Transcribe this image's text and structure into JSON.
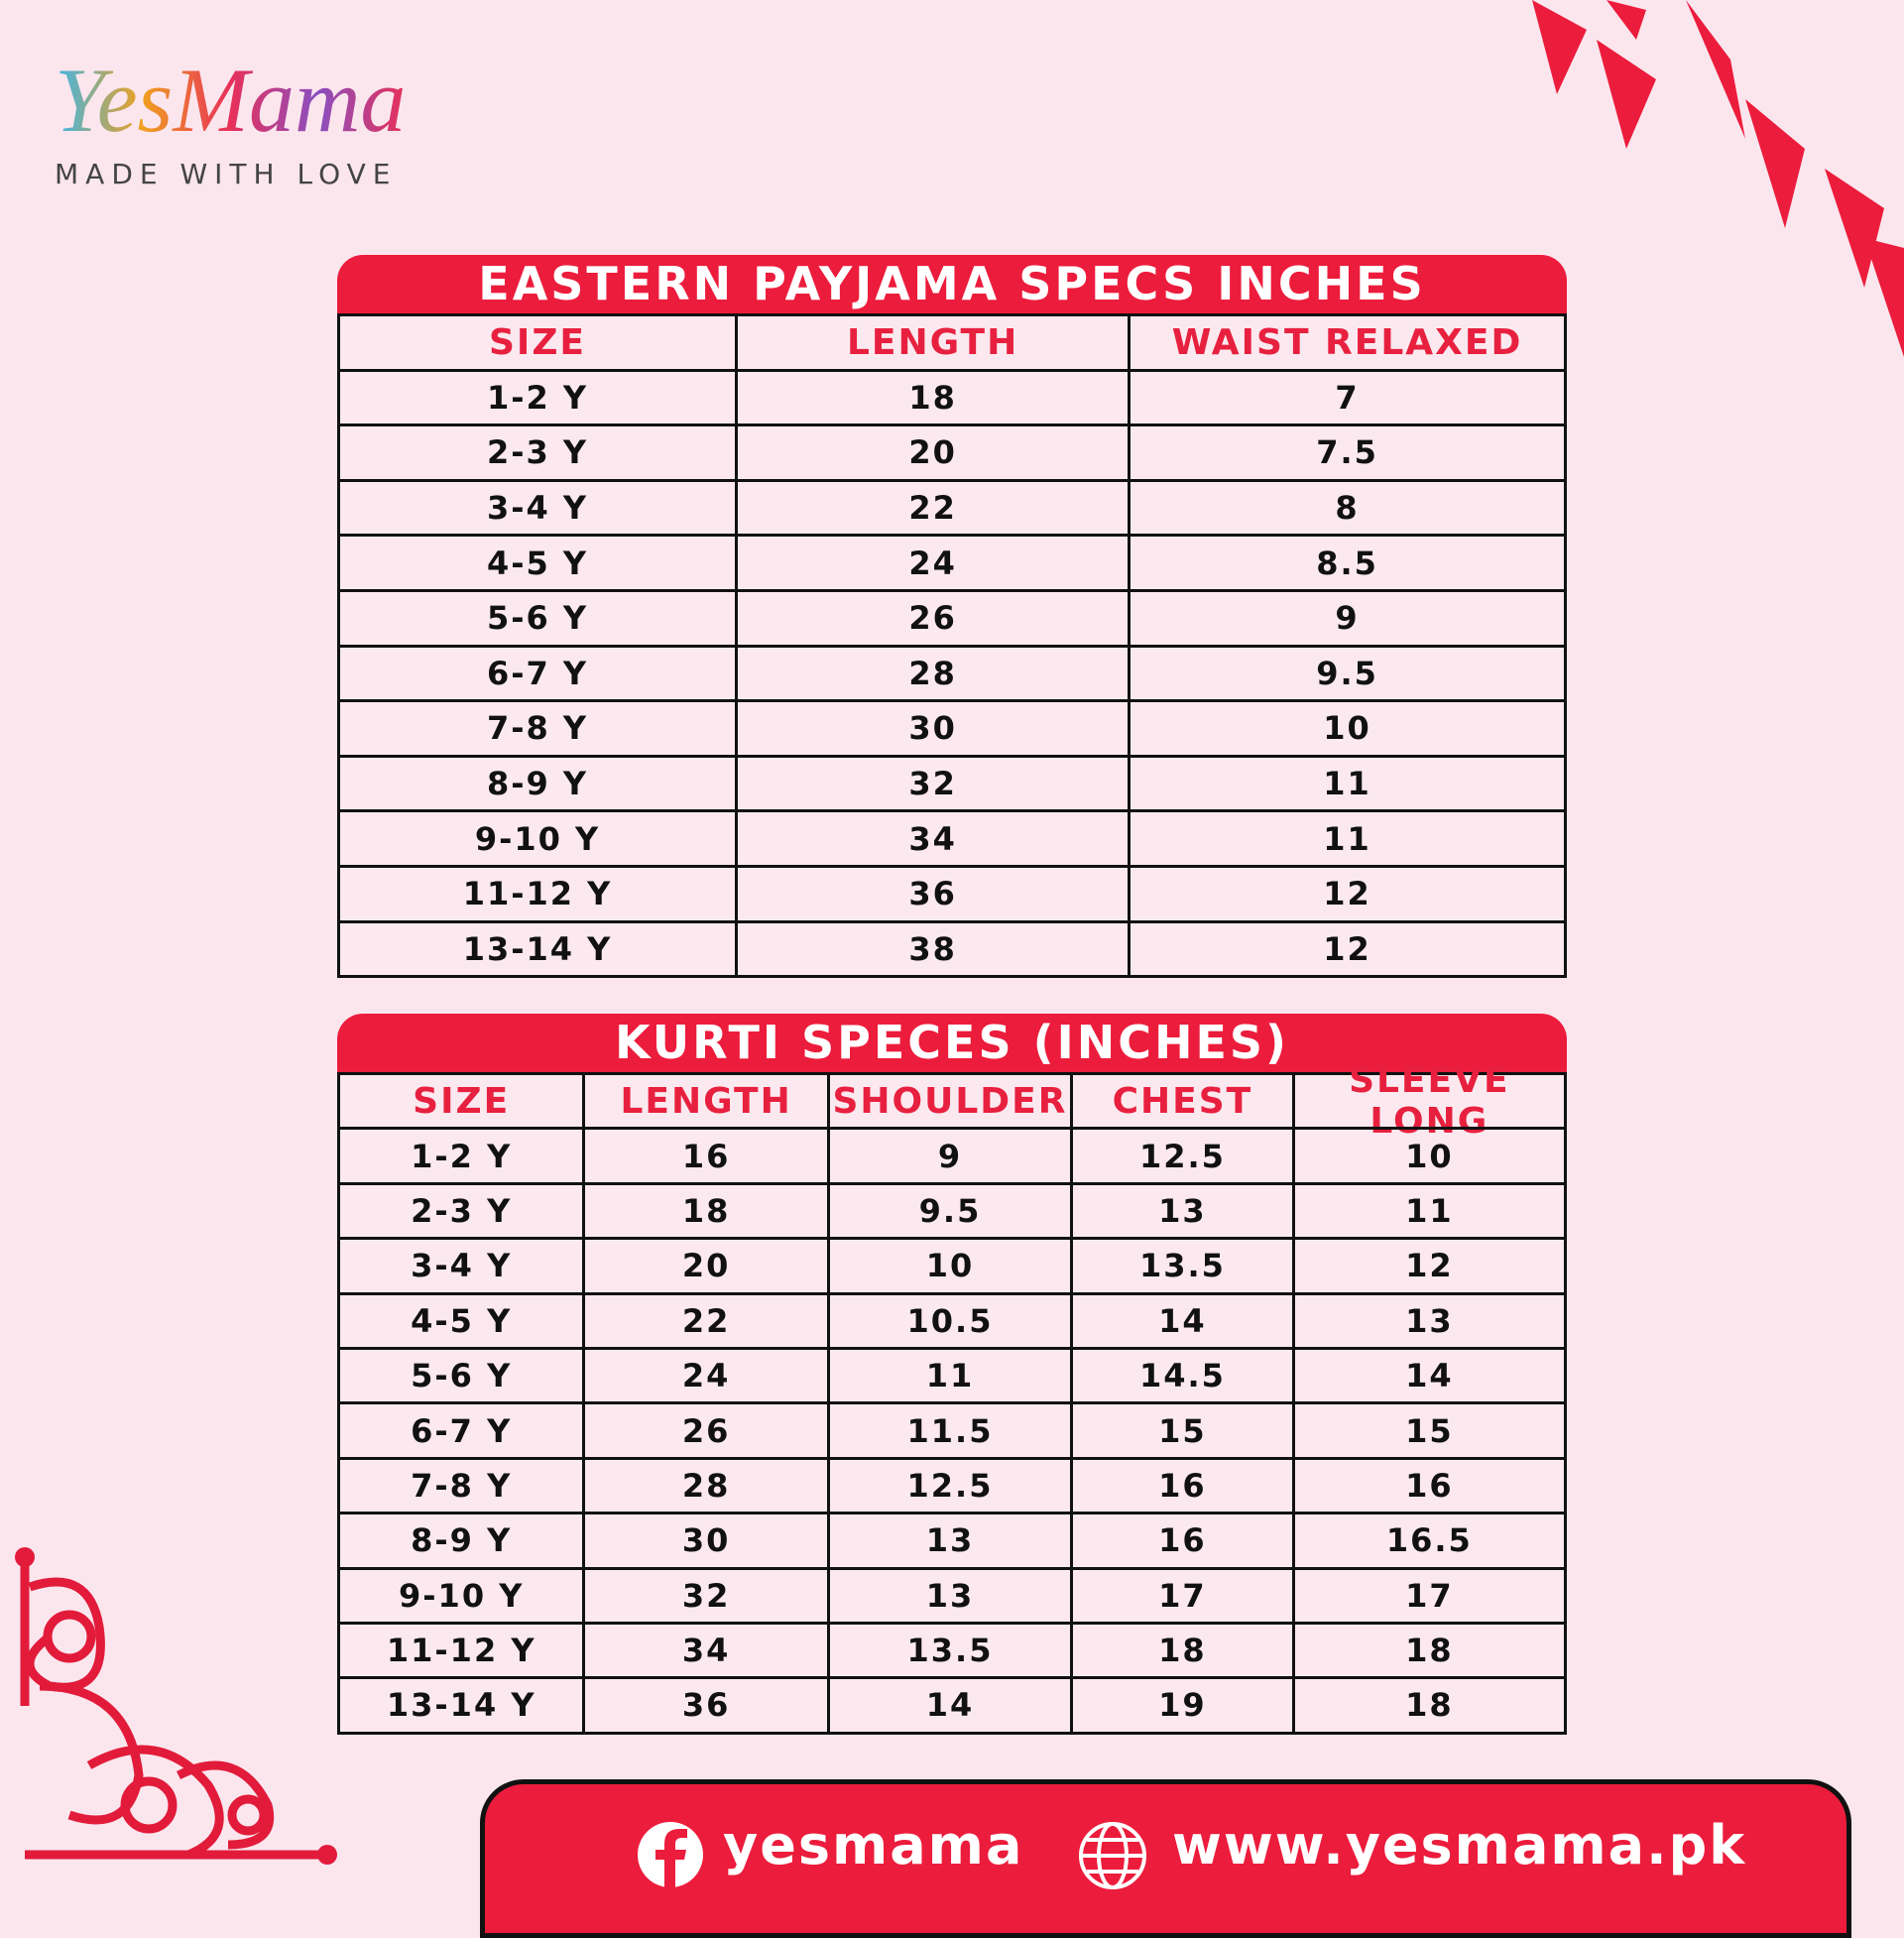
{
  "logo": {
    "name": "YesMama",
    "tagline": "MADE WITH LOVE"
  },
  "tables": [
    {
      "title": "EASTERN PAYJAMA SPECS INCHES",
      "columns": [
        "SIZE",
        "LENGTH",
        "WAIST RELAXED"
      ],
      "rows": [
        [
          "1-2 Y",
          18,
          7
        ],
        [
          "2-3 Y",
          20,
          7.5
        ],
        [
          "3-4 Y",
          22,
          8
        ],
        [
          "4-5 Y",
          24,
          8.5
        ],
        [
          "5-6 Y",
          26,
          9
        ],
        [
          "6-7 Y",
          28,
          9.5
        ],
        [
          "7-8 Y",
          30,
          10
        ],
        [
          "8-9 Y",
          32,
          11
        ],
        [
          "9-10 Y",
          34,
          11
        ],
        [
          "11-12 Y",
          36,
          12
        ],
        [
          "13-14 Y",
          38,
          12
        ]
      ]
    },
    {
      "title": "KURTI SPECES (INCHES)",
      "columns": [
        "SIZE",
        "LENGTH",
        "SHOULDER",
        "CHEST",
        "SLEEVE LONG"
      ],
      "rows": [
        [
          "1-2 Y",
          16,
          9,
          12.5,
          10
        ],
        [
          "2-3 Y",
          18,
          9.5,
          13,
          11
        ],
        [
          "3-4 Y",
          20,
          10,
          13.5,
          12
        ],
        [
          "4-5 Y",
          22,
          10.5,
          14,
          13
        ],
        [
          "5-6 Y",
          24,
          11,
          14.5,
          14
        ],
        [
          "6-7 Y",
          26,
          11.5,
          15,
          15
        ],
        [
          "7-8 Y",
          28,
          12.5,
          16,
          16
        ],
        [
          "8-9 Y",
          30,
          13,
          16,
          16.5
        ],
        [
          "9-10 Y",
          32,
          13,
          17,
          17
        ],
        [
          "11-12 Y",
          34,
          13.5,
          18,
          18
        ],
        [
          "13-14 Y",
          36,
          14,
          19,
          18
        ]
      ]
    }
  ],
  "footer": {
    "facebook": "yesmama",
    "website": "www.yesmama.pk"
  }
}
